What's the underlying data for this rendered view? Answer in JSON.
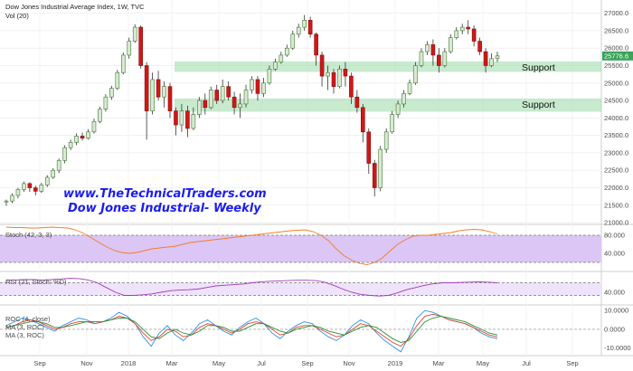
{
  "header": {
    "symbol_title": "Dow Jones Industrial Average Index, 1W, TVC",
    "volume_label": "Vol (20)"
  },
  "watermark": {
    "line1": "www.TheTechnicalTraders.com",
    "line2": "Dow Jones Industrial- Weekly",
    "color": "#1c1cf0"
  },
  "support_labels": [
    "Support",
    "Support"
  ],
  "colors": {
    "up": "#d9ead3",
    "up_border": "#3f7a33",
    "down": "#d01818",
    "support_zone": "#9ad9a8",
    "stoch_band": "#dcc6f5",
    "rsi_band": "#efe3fb",
    "stoch_line": "#f07e2a",
    "rsi_line": "#a23ab8",
    "roc_line": "#2f8fe3",
    "ma_line": "#e0442a",
    "ma2_line": "#2a8f3a",
    "last_price_tag": "#3aa35a"
  },
  "chart_data": {
    "type": "candlestick",
    "timeframe": "1W",
    "last_price": "25776.6",
    "y_ticks": [
      "27000.0",
      "26500.0",
      "26000.0",
      "25500.0",
      "25000.0",
      "24500.0",
      "24000.0",
      "23500.0",
      "23000.0",
      "22500.0",
      "22000.0",
      "21500.0",
      "21000.0"
    ],
    "ylim": [
      20950,
      27250
    ],
    "x_ticks": [
      "Sep",
      "Nov",
      "2018",
      "Mar",
      "May",
      "Jul",
      "Sep",
      "Nov",
      "2019",
      "Mar",
      "May",
      "Jul",
      "Sep"
    ],
    "support_zones": [
      {
        "low": 25320,
        "high": 25620
      },
      {
        "low": 24180,
        "high": 24560
      }
    ],
    "candles": [
      [
        21600,
        21620,
        21480,
        21660
      ],
      [
        21620,
        21780,
        21560,
        21840
      ],
      [
        21780,
        21950,
        21700,
        22000
      ],
      [
        21950,
        22120,
        21880,
        22180
      ],
      [
        22120,
        22000,
        21880,
        22160
      ],
      [
        22000,
        21900,
        21780,
        22060
      ],
      [
        21900,
        22080,
        21850,
        22140
      ],
      [
        22080,
        22300,
        22020,
        22360
      ],
      [
        22300,
        22500,
        22250,
        22560
      ],
      [
        22500,
        22780,
        22420,
        22840
      ],
      [
        22780,
        23150,
        22700,
        23220
      ],
      [
        23150,
        23300,
        23080,
        23380
      ],
      [
        23300,
        23480,
        23220,
        23560
      ],
      [
        23480,
        23420,
        23350,
        23580
      ],
      [
        23420,
        23600,
        23380,
        23680
      ],
      [
        23600,
        23900,
        23550,
        23980
      ],
      [
        23900,
        24250,
        23850,
        24320
      ],
      [
        24250,
        24600,
        24180,
        24680
      ],
      [
        24600,
        24850,
        24520,
        24920
      ],
      [
        24850,
        25300,
        24800,
        25380
      ],
      [
        25300,
        25800,
        25250,
        25880
      ],
      [
        25800,
        26200,
        25700,
        26300
      ],
      [
        26200,
        26600,
        26150,
        26680
      ],
      [
        26600,
        25500,
        25420,
        26650
      ],
      [
        25500,
        24200,
        23380,
        25600
      ],
      [
        24200,
        25100,
        24100,
        25300
      ],
      [
        25100,
        24600,
        24500,
        25350
      ],
      [
        24600,
        24900,
        24300,
        25050
      ],
      [
        24900,
        24200,
        24000,
        25000
      ],
      [
        24200,
        23800,
        23500,
        24300
      ],
      [
        23800,
        24200,
        23600,
        24400
      ],
      [
        24200,
        23700,
        23450,
        24350
      ],
      [
        23700,
        24100,
        23650,
        24300
      ],
      [
        24100,
        24500,
        24000,
        24600
      ],
      [
        24500,
        24300,
        24100,
        24700
      ],
      [
        24300,
        24800,
        24250,
        24900
      ],
      [
        24800,
        24500,
        24400,
        24950
      ],
      [
        24500,
        24900,
        24420,
        25100
      ],
      [
        24900,
        24600,
        24500,
        25050
      ],
      [
        24600,
        24300,
        24100,
        24750
      ],
      [
        24300,
        24400,
        24000,
        24700
      ],
      [
        24400,
        24800,
        24300,
        24950
      ],
      [
        24800,
        25100,
        24700,
        25200
      ],
      [
        25100,
        24700,
        24500,
        25200
      ],
      [
        24700,
        25000,
        24600,
        25150
      ],
      [
        25000,
        25400,
        24950,
        25500
      ],
      [
        25400,
        25600,
        25350,
        25700
      ],
      [
        25600,
        25800,
        25550,
        25900
      ],
      [
        25800,
        26000,
        25750,
        26100
      ],
      [
        26000,
        26400,
        25950,
        26500
      ],
      [
        26400,
        26600,
        26300,
        26700
      ],
      [
        26600,
        26800,
        26500,
        26950
      ],
      [
        26800,
        26400,
        26300,
        26900
      ],
      [
        26400,
        25800,
        25500,
        26450
      ],
      [
        25800,
        25200,
        24900,
        25900
      ],
      [
        25200,
        25300,
        24800,
        25500
      ],
      [
        25300,
        24900,
        24700,
        25400
      ],
      [
        24900,
        25400,
        24850,
        25500
      ],
      [
        25400,
        25200,
        24900,
        25600
      ],
      [
        25200,
        24600,
        24400,
        25300
      ],
      [
        24600,
        24300,
        24150,
        24800
      ],
      [
        24300,
        23600,
        23300,
        24400
      ],
      [
        23600,
        22700,
        22400,
        23700
      ],
      [
        22700,
        22000,
        21750,
        22800
      ],
      [
        22000,
        23100,
        21900,
        23200
      ],
      [
        23100,
        23600,
        23000,
        23700
      ],
      [
        23600,
        24100,
        23550,
        24200
      ],
      [
        24100,
        24400,
        24000,
        24500
      ],
      [
        24400,
        24700,
        24300,
        24800
      ],
      [
        24700,
        25000,
        24650,
        25100
      ],
      [
        25000,
        25500,
        24950,
        25600
      ],
      [
        25500,
        25900,
        25450,
        26000
      ],
      [
        25900,
        26100,
        25800,
        26200
      ],
      [
        26100,
        25800,
        25500,
        26250
      ],
      [
        25800,
        25500,
        25300,
        26000
      ],
      [
        25500,
        25900,
        25450,
        26000
      ],
      [
        25900,
        26300,
        25850,
        26400
      ],
      [
        26300,
        26500,
        26250,
        26600
      ],
      [
        26500,
        26600,
        26400,
        26700
      ],
      [
        26600,
        26550,
        26400,
        26800
      ],
      [
        26550,
        26200,
        26050,
        26650
      ],
      [
        26200,
        25900,
        25800,
        26300
      ],
      [
        25900,
        25500,
        25300,
        26000
      ],
      [
        25500,
        25700,
        25450,
        25850
      ],
      [
        25700,
        25777,
        25600,
        25900
      ]
    ],
    "indicators": [
      {
        "name": "Stoch (42, 3, 3)",
        "ticks": [
          "80.000",
          "40.000"
        ],
        "ylim": [
          0,
          100
        ],
        "band": [
          20,
          80
        ],
        "series": [
          {
            "values": [
              98,
              97,
              97,
              96,
              96,
              97,
              98,
              97,
              96,
              92,
              85,
              75,
              65,
              55,
              47,
              42,
              40,
              42,
              46,
              50,
              52,
              54,
              56,
              60,
              64,
              66,
              68,
              70,
              72,
              74,
              76,
              78,
              80,
              82,
              84,
              86,
              88,
              90,
              91,
              92,
              88,
              80,
              68,
              50,
              35,
              25,
              18,
              15,
              20,
              30,
              45,
              60,
              70,
              78,
              80,
              80,
              82,
              84,
              86,
              90,
              92,
              93,
              92,
              88,
              83
            ]
          }
        ]
      },
      {
        "name": "RSI (21, Stoch: %D)",
        "ticks": [
          "40.000"
        ],
        "ylim": [
          0,
          100
        ],
        "band": [
          30,
          70
        ],
        "series": [
          {
            "values": [
              78,
              79,
              80,
              80,
              79,
              80,
              82,
              84,
              83,
              79,
              70,
              55,
              40,
              30,
              30,
              32,
              35,
              40,
              45,
              47,
              48,
              50,
              55,
              60,
              62,
              64,
              66,
              70,
              73,
              75,
              76,
              77,
              78,
              78,
              77,
              72,
              62,
              50,
              40,
              33,
              30,
              28,
              30,
              38,
              48,
              55,
              62,
              67,
              70,
              70,
              71,
              72,
              73,
              72,
              70
            ]
          }
        ]
      },
      {
        "name": "ROC (4, close)",
        "labels": [
          "MA (3, ROC)",
          "MA (3, ROC)"
        ],
        "ticks": [
          "10.0000",
          "0.0000",
          "-10.0000"
        ],
        "ylim": [
          -14,
          12
        ],
        "series": [
          {
            "name": "ROC",
            "values": [
              2,
              4,
              6,
              5,
              3,
              1,
              -1,
              2,
              4,
              6,
              5,
              3,
              4,
              6,
              9,
              7,
              3,
              -4,
              -9,
              -2,
              2,
              -3,
              -6,
              -2,
              3,
              5,
              2,
              -1,
              -3,
              1,
              4,
              6,
              3,
              -2,
              -5,
              -1,
              2,
              4,
              3,
              -1,
              -4,
              -6,
              -3,
              2,
              5,
              3,
              -2,
              -6,
              -9,
              -12,
              -4,
              6,
              10,
              9,
              7,
              5,
              4,
              3,
              1,
              -2,
              -4,
              -5
            ]
          },
          {
            "name": "MA (3, ROC)",
            "values": [
              1,
              2,
              4,
              5,
              4,
              2,
              0,
              1,
              3,
              4,
              4,
              3,
              4,
              5,
              7,
              6,
              3,
              -2,
              -6,
              -4,
              0,
              -1,
              -4,
              -3,
              1,
              3,
              2,
              0,
              -2,
              0,
              3,
              4,
              3,
              0,
              -3,
              -2,
              1,
              2,
              2,
              0,
              -2,
              -4,
              -3,
              0,
              3,
              2,
              -1,
              -4,
              -7,
              -9,
              -5,
              2,
              7,
              8,
              7,
              5,
              4,
              3,
              1,
              -1,
              -3,
              -4
            ]
          },
          {
            "name": "MA (3, ROC)",
            "values": [
              1,
              2,
              3,
              4,
              4,
              3,
              1,
              1,
              2,
              3,
              4,
              4,
              4,
              5,
              6,
              6,
              4,
              0,
              -4,
              -5,
              -2,
              0,
              -2,
              -3,
              -1,
              2,
              2,
              1,
              -1,
              -1,
              1,
              3,
              3,
              1,
              -1,
              -2,
              0,
              1,
              2,
              1,
              -1,
              -2,
              -3,
              -1,
              1,
              2,
              1,
              -2,
              -5,
              -7,
              -6,
              -1,
              4,
              6,
              7,
              6,
              5,
              4,
              2,
              0,
              -2,
              -3
            ]
          }
        ]
      }
    ]
  }
}
